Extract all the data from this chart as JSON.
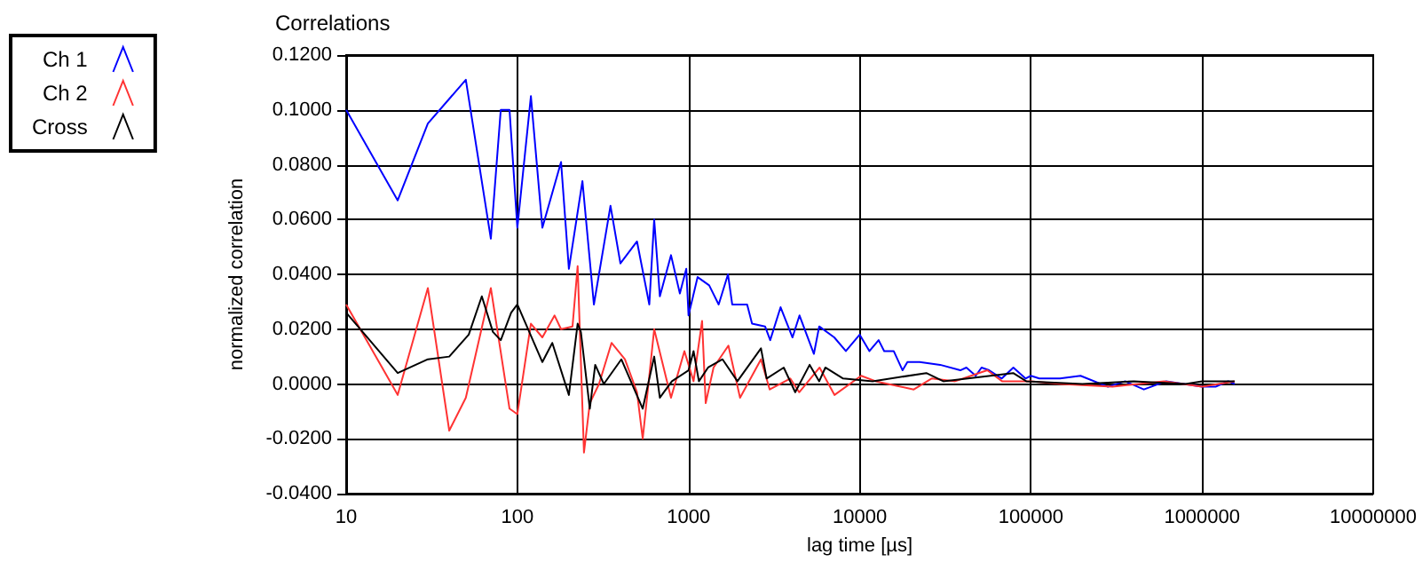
{
  "chart_data": {
    "type": "line",
    "title": "Correlations",
    "xlabel": "lag time [µs]",
    "ylabel": "normalized correlation",
    "log": "x",
    "grid": true,
    "legend": "top left",
    "marker": "none",
    "line_style": "solid",
    "xlim": [
      10,
      10000000
    ],
    "xticks": [
      10,
      100,
      1000,
      10000,
      100000,
      1000000,
      10000000
    ],
    "ylim": [
      -0.04,
      0.12
    ],
    "yticks": [
      {
        "value": -0.04,
        "label": "-0.0400"
      },
      {
        "value": -0.02,
        "label": "-0.0200"
      },
      {
        "value": 0,
        "label": "0.0000"
      },
      {
        "value": 0.02,
        "label": "0.0200"
      },
      {
        "value": 0.04,
        "label": "0.0400"
      },
      {
        "value": 0.06,
        "label": "0.0600"
      },
      {
        "value": 0.08,
        "label": "0.0800"
      },
      {
        "value": 0.1,
        "label": "0.1000"
      },
      {
        "value": 0.12,
        "label": "0.1200"
      }
    ],
    "series": [
      {
        "name": "Ch 1",
        "color": "#0000ff",
        "x": [
          10,
          20,
          30,
          50,
          70,
          80,
          90,
          100,
          120,
          140,
          180,
          200,
          240,
          280,
          350,
          400,
          500,
          590,
          630,
          680,
          790,
          890,
          970,
          1000,
          1130,
          1320,
          1500,
          1700,
          1800,
          2200,
          2350,
          2800,
          3000,
          3450,
          4050,
          4450,
          5400,
          5800,
          7100,
          8300,
          10000,
          11400,
          12900,
          13900,
          15800,
          17800,
          19000,
          22400,
          29500,
          38700,
          42000,
          47600,
          51500,
          57000,
          67600,
          79000,
          93000,
          100000,
          112000,
          148000,
          195000,
          282000,
          355000,
          457000,
          617000,
          1000000,
          1200000,
          1420000,
          1550000
        ],
        "values": [
          0.1,
          0.067,
          0.095,
          0.111,
          0.053,
          0.1,
          0.1,
          0.057,
          0.105,
          0.057,
          0.081,
          0.042,
          0.074,
          0.029,
          0.065,
          0.044,
          0.052,
          0.029,
          0.06,
          0.032,
          0.047,
          0.033,
          0.042,
          0.025,
          0.039,
          0.036,
          0.029,
          0.04,
          0.029,
          0.029,
          0.022,
          0.021,
          0.016,
          0.028,
          0.017,
          0.025,
          0.011,
          0.021,
          0.017,
          0.012,
          0.018,
          0.012,
          0.016,
          0.012,
          0.012,
          0.005,
          0.008,
          0.008,
          0.007,
          0.005,
          0.006,
          0.003,
          0.006,
          0.005,
          0.002,
          0.006,
          0.002,
          0.003,
          0.002,
          0.002,
          0.003,
          -0.001,
          0.001,
          -0.002,
          0.001,
          -0.001,
          -0.001,
          0.001,
          0.0
        ]
      },
      {
        "name": "Ch 2",
        "color": "#ff3333",
        "x": [
          10,
          20,
          30,
          40,
          50,
          70,
          90,
          100,
          120,
          140,
          165,
          180,
          210,
          225,
          245,
          265,
          300,
          355,
          425,
          500,
          540,
          630,
          790,
          946,
          1070,
          1200,
          1260,
          1400,
          1710,
          2000,
          2650,
          2980,
          3930,
          4430,
          5830,
          7120,
          10200,
          12400,
          20700,
          26300,
          36100,
          55600,
          67900,
          100000,
          150000,
          300000,
          600000,
          1000000,
          1550000
        ],
        "values": [
          0.029,
          -0.004,
          0.035,
          -0.017,
          -0.005,
          0.035,
          -0.009,
          -0.011,
          0.022,
          0.017,
          0.025,
          0.02,
          0.021,
          0.043,
          -0.025,
          -0.007,
          0.0,
          0.015,
          0.009,
          -0.003,
          -0.02,
          0.02,
          -0.005,
          0.012,
          0.001,
          0.023,
          -0.007,
          0.006,
          0.014,
          -0.005,
          0.009,
          -0.002,
          0.002,
          -0.003,
          0.006,
          -0.004,
          0.003,
          0.001,
          -0.002,
          0.002,
          0.001,
          0.005,
          0.001,
          0.001,
          0.0,
          -0.001,
          0.001,
          -0.001,
          0.001
        ]
      },
      {
        "name": "Cross",
        "color": "#000000",
        "x": [
          10,
          20,
          30,
          40,
          52,
          62,
          72,
          80,
          92,
          100,
          140,
          160,
          200,
          225,
          235,
          265,
          285,
          320,
          405,
          540,
          630,
          680,
          800,
          1000,
          1070,
          1150,
          1300,
          1580,
          1930,
          2650,
          2860,
          3600,
          4200,
          5100,
          5800,
          6300,
          8000,
          11900,
          24500,
          30800,
          78800,
          94000,
          200000,
          400000,
          800000,
          1000000,
          1550000
        ],
        "values": [
          0.026,
          0.004,
          0.009,
          0.01,
          0.018,
          0.032,
          0.019,
          0.016,
          0.026,
          0.029,
          0.008,
          0.015,
          -0.004,
          0.022,
          0.019,
          -0.009,
          0.007,
          0.0,
          0.009,
          -0.009,
          0.01,
          -0.005,
          0.001,
          0.005,
          0.012,
          0.001,
          0.006,
          0.009,
          0.001,
          0.013,
          0.002,
          0.006,
          -0.003,
          0.007,
          0.001,
          0.006,
          0.002,
          0.001,
          0.004,
          0.001,
          0.004,
          0.001,
          0.0,
          0.001,
          0.0,
          0.001,
          0.001
        ]
      }
    ]
  }
}
